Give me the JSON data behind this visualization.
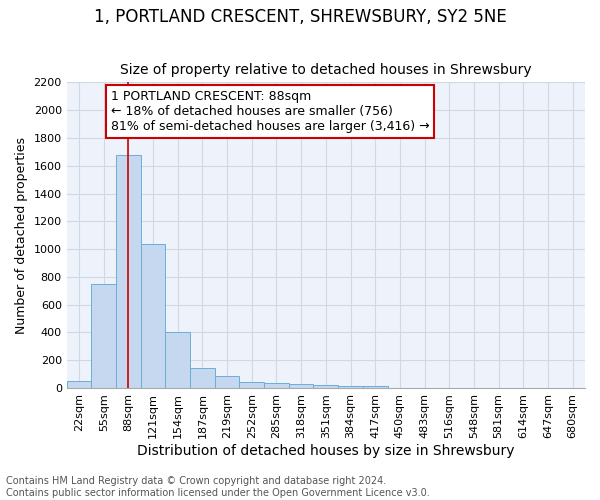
{
  "title": "1, PORTLAND CRESCENT, SHREWSBURY, SY2 5NE",
  "subtitle": "Size of property relative to detached houses in Shrewsbury",
  "xlabel": "Distribution of detached houses by size in Shrewsbury",
  "ylabel": "Number of detached properties",
  "bins": [
    "22sqm",
    "55sqm",
    "88sqm",
    "121sqm",
    "154sqm",
    "187sqm",
    "219sqm",
    "252sqm",
    "285sqm",
    "318sqm",
    "351sqm",
    "384sqm",
    "417sqm",
    "450sqm",
    "483sqm",
    "516sqm",
    "548sqm",
    "581sqm",
    "614sqm",
    "647sqm",
    "680sqm"
  ],
  "values": [
    50,
    750,
    1680,
    1040,
    405,
    148,
    85,
    45,
    37,
    30,
    20,
    18,
    18,
    0,
    0,
    0,
    0,
    0,
    0,
    0,
    0
  ],
  "bar_color": "#c5d8f0",
  "bar_edge_color": "#6aaed6",
  "red_line_index": 2,
  "annotation_line1": "1 PORTLAND CRESCENT: 88sqm",
  "annotation_line2": "← 18% of detached houses are smaller (756)",
  "annotation_line3": "81% of semi-detached houses are larger (3,416) →",
  "annotation_box_color": "#ffffff",
  "annotation_box_edge_color": "#cc0000",
  "ylim": [
    0,
    2200
  ],
  "yticks": [
    0,
    200,
    400,
    600,
    800,
    1000,
    1200,
    1400,
    1600,
    1800,
    2000,
    2200
  ],
  "background_color": "#eef2fa",
  "footer_text": "Contains HM Land Registry data © Crown copyright and database right 2024.\nContains public sector information licensed under the Open Government Licence v3.0.",
  "title_fontsize": 12,
  "subtitle_fontsize": 10,
  "xlabel_fontsize": 10,
  "ylabel_fontsize": 9,
  "tick_fontsize": 8,
  "annotation_fontsize": 9,
  "footer_fontsize": 7
}
